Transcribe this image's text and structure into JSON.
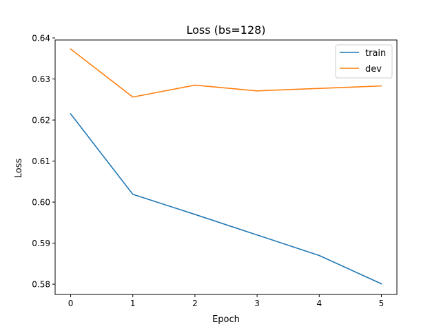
{
  "chart_data": {
    "type": "line",
    "title": "Loss (bs=128)",
    "xlabel": "Epoch",
    "ylabel": "Loss",
    "x": [
      0,
      1,
      2,
      3,
      4,
      5
    ],
    "xticks": [
      0,
      1,
      2,
      3,
      4,
      5
    ],
    "xtick_labels": [
      "0",
      "1",
      "2",
      "3",
      "4",
      "5"
    ],
    "yticks": [
      0.58,
      0.59,
      0.6,
      0.61,
      0.62,
      0.63,
      0.64
    ],
    "ytick_labels": [
      "0.58",
      "0.59",
      "0.60",
      "0.61",
      "0.62",
      "0.63",
      "0.64"
    ],
    "xlim": [
      -0.25,
      5.25
    ],
    "ylim": [
      0.5775,
      0.6395
    ],
    "grid": false,
    "legend_position": "top-right",
    "series": [
      {
        "name": "train",
        "color": "#1f77b4",
        "values": [
          0.6215,
          0.6019,
          0.597,
          0.592,
          0.587,
          0.5801
        ]
      },
      {
        "name": "dev",
        "color": "#ff7f0e",
        "values": [
          0.6373,
          0.6256,
          0.6285,
          0.6271,
          0.6277,
          0.6283
        ]
      }
    ]
  }
}
